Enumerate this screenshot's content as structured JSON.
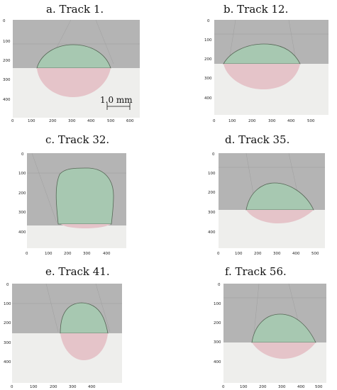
{
  "figure": {
    "panels": [
      {
        "title": "a. Track 1.",
        "x_ticks": [
          "0",
          "100",
          "200",
          "300",
          "400",
          "500",
          "600"
        ],
        "y_ticks": [
          "0",
          "100",
          "200",
          "300",
          "400"
        ],
        "scale_bar": "1.0 mm"
      },
      {
        "title": "b. Track 12.",
        "x_ticks": [
          "0",
          "100",
          "200",
          "300",
          "400",
          "500"
        ],
        "y_ticks": [
          "0",
          "100",
          "200",
          "300",
          "400"
        ]
      },
      {
        "title": "c. Track 32.",
        "x_ticks": [
          "0",
          "100",
          "200",
          "300",
          "400"
        ],
        "y_ticks": [
          "0",
          "100",
          "200",
          "300",
          "400"
        ]
      },
      {
        "title": "d. Track 35.",
        "x_ticks": [
          "0",
          "100",
          "200",
          "300",
          "400",
          "500"
        ],
        "y_ticks": [
          "0",
          "100",
          "200",
          "300",
          "400"
        ]
      },
      {
        "title": "e. Track 41.",
        "x_ticks": [
          "0",
          "100",
          "200",
          "300",
          "400"
        ],
        "y_ticks": [
          "0",
          "100",
          "200",
          "300",
          "400"
        ]
      },
      {
        "title": "f. Track 56.",
        "x_ticks": [
          "0",
          "100",
          "200",
          "300",
          "400",
          "500"
        ],
        "y_ticks": [
          "0",
          "100",
          "200",
          "300",
          "400"
        ]
      }
    ],
    "colors": {
      "powder_gray": "#b4b4b4",
      "substrate": "#eeeeec",
      "bead_above": "#a7c8b1",
      "melt_pool_below": "#e5c4c9",
      "outline": "#556655"
    }
  }
}
